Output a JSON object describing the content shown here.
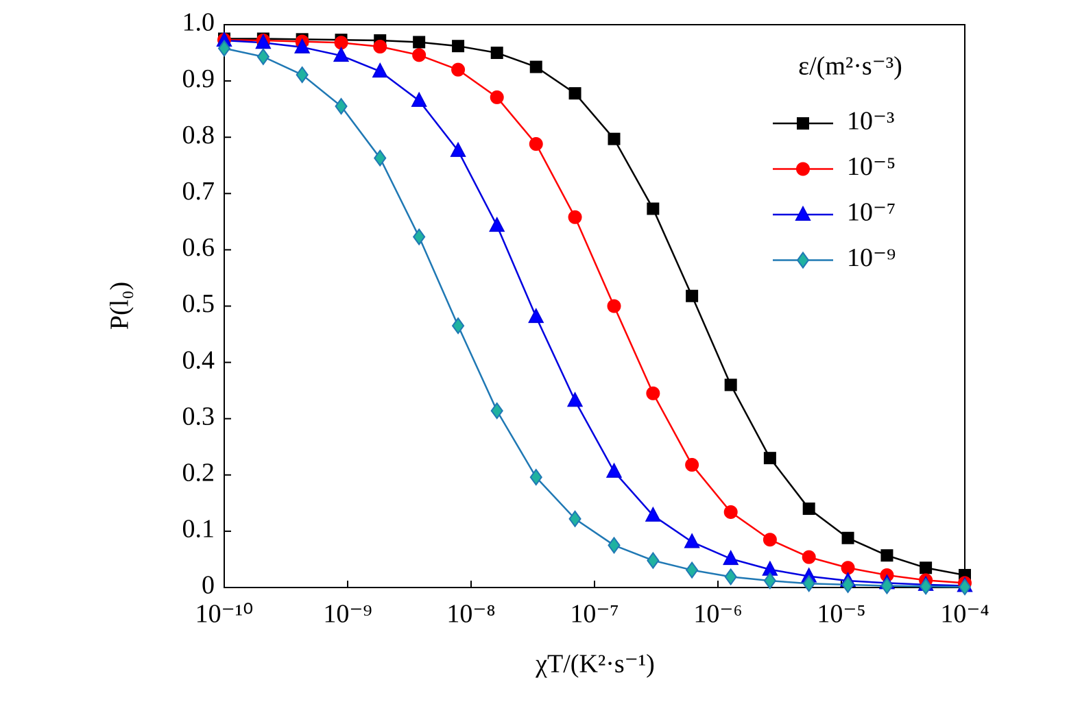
{
  "chart_data": {
    "type": "line",
    "log_x": true,
    "xlabel": "χT/(K²·s⁻¹)",
    "ylabel": "P(l₀)",
    "legend_title": "ε/(m²·s⁻³)",
    "legend": "upper right",
    "x": [
      1e-10,
      2.07e-10,
      4.28e-10,
      8.86e-10,
      1.83e-09,
      3.79e-09,
      7.85e-09,
      1.62e-08,
      3.36e-08,
      6.95e-08,
      1.44e-07,
      2.98e-07,
      6.16e-07,
      1.27e-06,
      2.64e-06,
      5.46e-06,
      1.13e-05,
      2.34e-05,
      4.83e-05,
      0.0001
    ],
    "series": [
      {
        "name": "10⁻³",
        "color": "#000000",
        "marker": "square",
        "marker_fill": "#000000",
        "values": [
          0.975,
          0.975,
          0.974,
          0.973,
          0.972,
          0.969,
          0.962,
          0.95,
          0.925,
          0.878,
          0.797,
          0.673,
          0.518,
          0.36,
          0.23,
          0.14,
          0.088,
          0.057,
          0.035,
          0.022
        ]
      },
      {
        "name": "10⁻⁵",
        "color": "#ff0000",
        "marker": "circle",
        "marker_fill": "#ff0000",
        "values": [
          0.973,
          0.972,
          0.97,
          0.968,
          0.961,
          0.946,
          0.92,
          0.871,
          0.788,
          0.658,
          0.5,
          0.345,
          0.218,
          0.134,
          0.085,
          0.054,
          0.035,
          0.022,
          0.013,
          0.008
        ]
      },
      {
        "name": "10⁻⁷",
        "color": "#0000e0",
        "marker": "triangle",
        "marker_fill": "#0000ff",
        "values": [
          0.972,
          0.968,
          0.96,
          0.945,
          0.917,
          0.865,
          0.776,
          0.643,
          0.481,
          0.332,
          0.206,
          0.128,
          0.081,
          0.051,
          0.032,
          0.02,
          0.012,
          0.008,
          0.005,
          0.003
        ]
      },
      {
        "name": "10⁻⁹",
        "color": "#1f78b4",
        "marker": "diamond",
        "marker_fill": "#20b2a0",
        "values": [
          0.958,
          0.943,
          0.911,
          0.855,
          0.763,
          0.623,
          0.465,
          0.314,
          0.196,
          0.122,
          0.075,
          0.048,
          0.031,
          0.019,
          0.012,
          0.007,
          0.005,
          0.003,
          0.002,
          0.001
        ]
      }
    ],
    "xlim": [
      1e-10,
      0.0001
    ],
    "xticks": [
      {
        "value": 1e-10,
        "label": "10⁻¹⁰"
      },
      {
        "value": 1e-09,
        "label": "10⁻⁹"
      },
      {
        "value": 1e-08,
        "label": "10⁻⁸"
      },
      {
        "value": 1e-07,
        "label": "10⁻⁷"
      },
      {
        "value": 1e-06,
        "label": "10⁻⁶"
      },
      {
        "value": 1e-05,
        "label": "10⁻⁵"
      },
      {
        "value": 0.0001,
        "label": "10⁻⁴"
      }
    ],
    "ylim": [
      0,
      1
    ],
    "yticks": [
      0,
      0.1,
      0.2,
      0.3,
      0.4,
      0.5,
      0.6,
      0.7,
      0.8,
      0.9,
      {
        "value": 1,
        "label": "1.0"
      }
    ],
    "grid": false
  }
}
